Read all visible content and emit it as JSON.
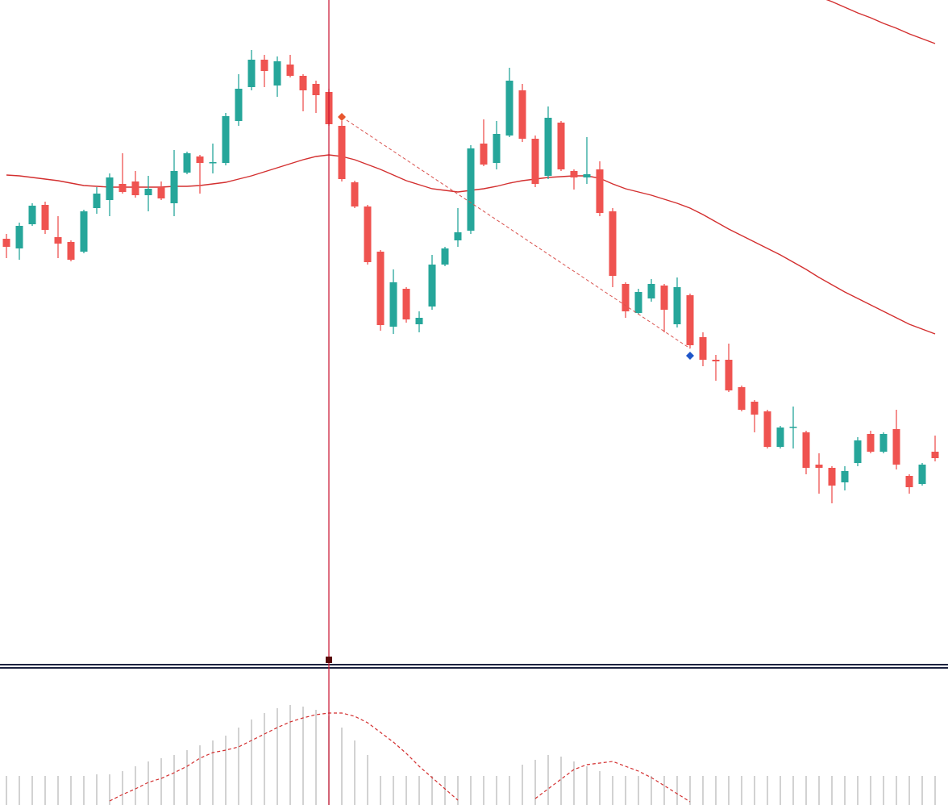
{
  "chart_data": [
    {
      "type": "candlestick",
      "ylim": [
        178,
        1000
      ],
      "up_color": "#26a69a",
      "down_color": "#ef5350",
      "open": [
        704,
        692,
        722,
        746,
        706,
        700,
        688,
        742,
        752,
        772,
        775,
        758,
        768,
        748,
        786,
        806,
        798,
        798,
        850,
        892,
        926,
        894,
        920,
        906,
        896,
        886,
        844,
        774,
        744,
        688,
        595,
        642,
        598,
        620,
        672,
        702,
        714,
        822,
        798,
        832,
        888,
        828,
        782,
        848,
        788,
        780,
        790,
        738,
        648,
        612,
        630,
        646,
        598,
        634,
        582,
        554,
        554,
        520,
        502,
        490,
        446,
        470,
        464,
        424,
        420,
        402,
        426,
        462,
        440,
        468,
        410,
        400,
        440
      ],
      "high": [
        710,
        724,
        748,
        750,
        732,
        702,
        740,
        768,
        785,
        810,
        788,
        782,
        775,
        814,
        812,
        808,
        822,
        860,
        908,
        938,
        932,
        930,
        932,
        908,
        900,
        890,
        850,
        776,
        746,
        690,
        666,
        644,
        614,
        684,
        694,
        742,
        820,
        852,
        850,
        916,
        896,
        832,
        868,
        850,
        790,
        830,
        800,
        742,
        650,
        642,
        654,
        648,
        656,
        636,
        588,
        560,
        574,
        522,
        504,
        492,
        472,
        496,
        466,
        438,
        422,
        422,
        458,
        466,
        464,
        492,
        412,
        426,
        460
      ],
      "low": [
        680,
        678,
        720,
        710,
        680,
        676,
        686,
        735,
        732,
        760,
        755,
        738,
        752,
        732,
        784,
        760,
        785,
        795,
        844,
        888,
        892,
        880,
        904,
        862,
        860,
        844,
        775,
        742,
        672,
        590,
        586,
        600,
        588,
        616,
        670,
        694,
        710,
        794,
        790,
        830,
        824,
        768,
        778,
        788,
        765,
        772,
        732,
        644,
        606,
        610,
        626,
        588,
        594,
        568,
        546,
        528,
        514,
        490,
        464,
        444,
        444,
        444,
        412,
        388,
        376,
        392,
        422,
        438,
        438,
        418,
        388,
        398,
        428
      ],
      "close": [
        694,
        720,
        745,
        715,
        698,
        678,
        738,
        760,
        780,
        762,
        758,
        766,
        754,
        788,
        810,
        798,
        799,
        856,
        890,
        926,
        912,
        924,
        906,
        888,
        882,
        846,
        778,
        744,
        675,
        597,
        650,
        604,
        606,
        672,
        692,
        712,
        816,
        796,
        834,
        900,
        828,
        772,
        854,
        790,
        780,
        784,
        736,
        658,
        614,
        638,
        648,
        616,
        644,
        572,
        554,
        552,
        516,
        492,
        486,
        446,
        470,
        471,
        420,
        420,
        398,
        416,
        454,
        440,
        462,
        424,
        396,
        424,
        432
      ],
      "series": [
        {
          "color": "#d32f2f",
          "values": [
            783,
            782,
            780,
            778,
            776,
            773,
            770,
            769,
            768,
            768,
            768,
            768,
            768,
            769,
            769,
            770,
            772,
            774,
            778,
            782,
            787,
            792,
            797,
            802,
            806,
            808,
            806,
            802,
            796,
            790,
            783,
            776,
            771,
            766,
            764,
            762,
            764,
            766,
            769,
            773,
            776,
            778,
            780,
            781,
            782,
            782,
            779,
            772,
            766,
            762,
            758,
            753,
            748,
            742,
            734,
            725,
            716,
            708,
            700,
            692,
            684,
            675,
            666,
            656,
            647,
            638,
            630,
            622,
            614,
            606,
            598,
            592,
            586
          ]
        },
        {
          "color": "#d32f2f",
          "values": [
            null,
            null,
            null,
            null,
            null,
            null,
            null,
            null,
            null,
            null,
            null,
            null,
            null,
            null,
            null,
            null,
            null,
            null,
            null,
            null,
            null,
            null,
            null,
            null,
            null,
            null,
            null,
            null,
            null,
            null,
            null,
            null,
            null,
            null,
            null,
            null,
            null,
            null,
            null,
            null,
            null,
            null,
            null,
            null,
            null,
            null,
            null,
            null,
            null,
            null,
            null,
            null,
            null,
            null,
            null,
            null,
            null,
            null,
            null,
            null,
            null,
            null,
            null,
            1004,
            998,
            991,
            984,
            978,
            971,
            965,
            958,
            952,
            946
          ]
        }
      ]
    },
    {
      "type": "bar",
      "ylim": [
        0,
        166
      ],
      "color": "#c4c4c4",
      "values": [
        36,
        36,
        36,
        36,
        36,
        36,
        36,
        38,
        38,
        42,
        48,
        54,
        58,
        62,
        68,
        74,
        80,
        86,
        96,
        106,
        114,
        120,
        124,
        122,
        118,
        110,
        96,
        80,
        62,
        36,
        36,
        36,
        36,
        36,
        36,
        36,
        36,
        36,
        36,
        36,
        50,
        56,
        62,
        60,
        54,
        48,
        42,
        36,
        36,
        36,
        36,
        36,
        36,
        36,
        36,
        36,
        36,
        36,
        36,
        36,
        36,
        36,
        36,
        36,
        36,
        36,
        36,
        36,
        36,
        36,
        36,
        36,
        36
      ],
      "series": [
        {
          "color": "#d32f2f",
          "values": [
            null,
            null,
            null,
            null,
            null,
            null,
            null,
            null,
            5,
            13,
            20,
            28,
            33,
            40,
            48,
            58,
            65,
            68,
            72,
            80,
            88,
            96,
            103,
            108,
            112,
            114,
            114,
            110,
            102,
            90,
            78,
            64,
            48,
            34,
            20,
            6,
            null,
            null,
            null,
            null,
            null,
            8,
            20,
            32,
            44,
            50,
            52,
            54,
            48,
            42,
            34,
            24,
            14,
            4,
            null,
            null,
            null,
            null,
            null,
            null,
            null,
            null,
            null,
            null,
            null,
            null,
            null,
            null,
            null,
            null,
            null,
            null,
            null
          ]
        }
      ]
    }
  ]
}
